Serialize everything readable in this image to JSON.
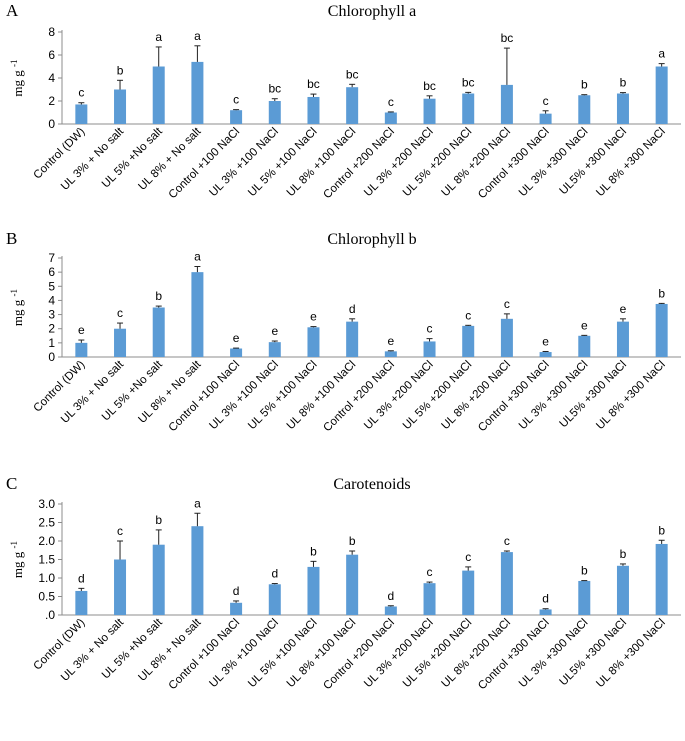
{
  "categories": [
    "Control (DW)",
    "UL 3% + No salt",
    "UL 5% +No salt",
    "UL 8% + No salt",
    "Control +100  NaCl",
    "UL 3% +100 NaCl",
    "UL 5% +100 NaCl",
    "UL 8% +100 NaCl",
    "Control  +200 NaCl",
    "UL 3% +200 NaCl",
    "UL 5% +200 NaCl",
    "UL 8% +200 NaCl",
    "Control  +300 NaCl",
    "UL 3% +300 NaCl",
    "UL5% +300 NaCl",
    "UL 8% +300 NaCl"
  ],
  "bar_color": "#5b9bd5",
  "chart_data": [
    {
      "type": "bar",
      "panel": "A",
      "title": "Chlorophyll a",
      "ylabel": "mg g",
      "ylabel_sup": "-1",
      "ylim": [
        0,
        8
      ],
      "yticks": [
        "0",
        "2",
        "4",
        "6",
        "8"
      ],
      "values": [
        1.7,
        3.0,
        5.0,
        5.4,
        1.2,
        2.0,
        2.35,
        3.2,
        1.0,
        2.2,
        2.65,
        3.4,
        0.9,
        2.5,
        2.65,
        5.0
      ],
      "errors": [
        0.15,
        0.8,
        1.7,
        1.4,
        0.05,
        0.2,
        0.25,
        0.25,
        0.05,
        0.25,
        0.1,
        3.2,
        0.25,
        0.05,
        0.08,
        0.25
      ],
      "letters": [
        "c",
        "b",
        "a",
        "a",
        "c",
        "bc",
        "bc",
        "bc",
        "c",
        "bc",
        "bc",
        "bc",
        "c",
        "b",
        "b",
        "a"
      ]
    },
    {
      "type": "bar",
      "panel": "B",
      "title": "Chlorophyll b",
      "ylabel": "mg g",
      "ylabel_sup": "-1",
      "ylim": [
        0,
        7
      ],
      "yticks": [
        "0",
        "1",
        "2",
        "3",
        "4",
        "5",
        "6",
        "7"
      ],
      "values": [
        1.0,
        2.0,
        3.5,
        6.0,
        0.6,
        1.05,
        2.1,
        2.5,
        0.4,
        1.1,
        2.2,
        2.7,
        0.35,
        1.5,
        2.5,
        3.75
      ],
      "errors": [
        0.2,
        0.4,
        0.1,
        0.4,
        0.03,
        0.08,
        0.05,
        0.2,
        0.04,
        0.2,
        0.04,
        0.35,
        0.04,
        0.03,
        0.2,
        0.04
      ],
      "letters": [
        "e",
        "c",
        "b",
        "a",
        "e",
        "e",
        "e",
        "d",
        "e",
        "c",
        "c",
        "c",
        "e",
        "e",
        "e",
        "b"
      ]
    },
    {
      "type": "bar",
      "panel": "C",
      "title": "Carotenoids",
      "ylabel": "mg g",
      "ylabel_sup": "-1",
      "ylim": [
        0,
        3
      ],
      "yticks": [
        ".0",
        "0.5",
        "1.0",
        "1.5",
        "2.0",
        "2.5",
        "3.0"
      ],
      "values": [
        0.65,
        1.5,
        1.9,
        2.4,
        0.33,
        0.83,
        1.3,
        1.63,
        0.23,
        0.86,
        1.2,
        1.7,
        0.15,
        0.92,
        1.33,
        1.92
      ],
      "errors": [
        0.07,
        0.5,
        0.4,
        0.35,
        0.05,
        0.02,
        0.15,
        0.1,
        0.02,
        0.03,
        0.1,
        0.03,
        0.02,
        0.01,
        0.05,
        0.1
      ],
      "letters": [
        "d",
        "c",
        "b",
        "a",
        "d",
        "d",
        "b",
        "b",
        "d",
        "c",
        "c",
        "c",
        "d",
        "b",
        "b",
        "b"
      ]
    }
  ]
}
